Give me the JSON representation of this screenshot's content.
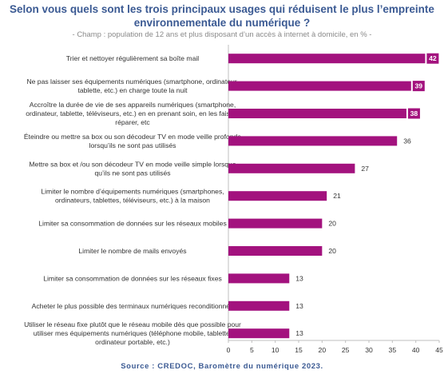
{
  "title": "Selon vous quels sont les trois principaux usages qui réduisent le plus l’empreinte environnementale du numérique ?",
  "subtitle": "- Champ : population de 12 ans et plus disposant d’un accès à internet à domicile, en % -",
  "source": "Source : CREDOC, Baromètre du numérique 2023.",
  "colors": {
    "bar": "#a3127e",
    "title": "#3b5a93",
    "axis": "#bfbfbf"
  },
  "chart_data": {
    "type": "bar",
    "orientation": "horizontal",
    "categories": [
      [
        "Trier et nettoyer régulièrement sa boîte mail"
      ],
      [
        "Ne pas laisser ses équipements numériques (smartphone, ordinateur,",
        "tablette, etc.) en charge toute la nuit"
      ],
      [
        "Accroître la durée de vie de ses appareils numériques (smartphone,",
        "ordinateur, tablette, téléviseurs, etc.) en en prenant soin, en les faisant",
        "réparer, etc"
      ],
      [
        "Éteindre ou mettre sa box ou son décodeur TV en mode veille profonde",
        "lorsqu’ils ne sont pas utilisés"
      ],
      [
        "Mettre sa box et /ou son décodeur TV en mode veille simple lorsque",
        "qu’ils ne sont pas utilisés"
      ],
      [
        "Limiter le nombre d’équipements numériques (smartphones,",
        "ordinateurs, tablettes, téléviseurs, etc.) à la maison"
      ],
      [
        "Limiter sa consommation de données sur les réseaux mobiles"
      ],
      [
        "Limiter le nombre de mails envoyés"
      ],
      [
        "Limiter sa consommation de données sur les réseaux fixes"
      ],
      [
        "Acheter le plus possible des terminaux numériques reconditionnés"
      ],
      [
        "Utiliser le réseau fixe plutôt que le réseau mobile dès que possible pour",
        "utiliser mes équipements numériques (téléphone mobile, tablette,",
        "ordinateur portable, etc.)"
      ]
    ],
    "values": [
      42,
      39,
      38,
      36,
      27,
      21,
      20,
      20,
      13,
      13,
      13
    ],
    "highlighted": [
      true,
      true,
      true,
      false,
      false,
      false,
      false,
      false,
      false,
      false,
      false
    ],
    "xlim": [
      0,
      45
    ],
    "xticks": [
      0,
      5,
      10,
      15,
      20,
      25,
      30,
      35,
      40,
      45
    ],
    "grid": false,
    "legend": "none"
  }
}
